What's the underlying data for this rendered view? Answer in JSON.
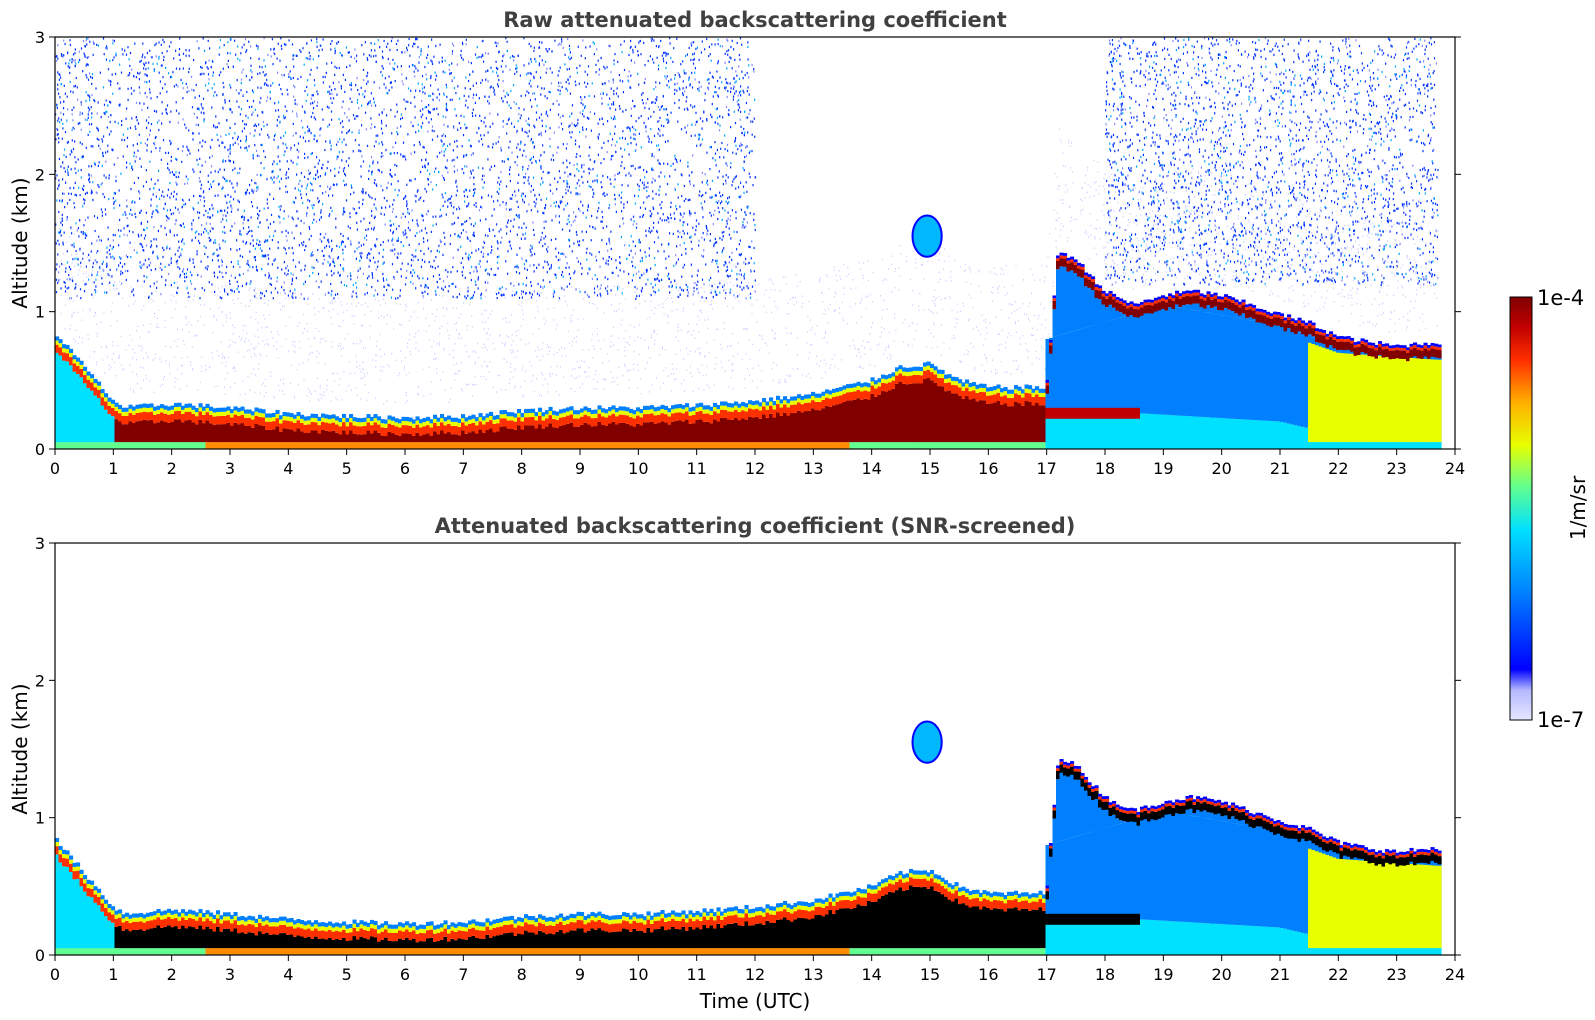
{
  "chart_data": [
    {
      "type": "heatmap",
      "title": "Raw attenuated backscattering coefficient",
      "xlabel": "",
      "ylabel": "Altitude (km)",
      "xlim": [
        0,
        24
      ],
      "ylim": [
        0,
        3
      ],
      "x_ticks": [
        "0",
        "1",
        "2",
        "3",
        "4",
        "5",
        "6",
        "7",
        "8",
        "9",
        "10",
        "11",
        "12",
        "13",
        "14",
        "15",
        "16",
        "17",
        "18",
        "19",
        "20",
        "21",
        "22",
        "23",
        "24"
      ],
      "y_ticks": [
        "0",
        "1",
        "2",
        "3"
      ],
      "data_end_time": 23.7,
      "layer_top_km": {
        "time": [
          0,
          0.5,
          1,
          1.2,
          2,
          3,
          4,
          5,
          6,
          7,
          8,
          9,
          10,
          11,
          12,
          13,
          14,
          14.5,
          15,
          15.5,
          16,
          16.5,
          17,
          17.2,
          17.5,
          18,
          18.5,
          19,
          19.5,
          20,
          20.5,
          21,
          21.5,
          22,
          22.5,
          23,
          23.7
        ],
        "altitude": [
          0.85,
          0.6,
          0.35,
          0.3,
          0.33,
          0.3,
          0.26,
          0.24,
          0.23,
          0.24,
          0.28,
          0.3,
          0.3,
          0.32,
          0.35,
          0.4,
          0.5,
          0.6,
          0.62,
          0.5,
          0.45,
          0.45,
          0.45,
          1.45,
          1.38,
          1.15,
          1.05,
          1.12,
          1.15,
          1.12,
          1.05,
          0.98,
          0.92,
          0.82,
          0.78,
          0.75,
          0.78
        ]
      },
      "aerosol_layer_km": {
        "time": [
          17,
          19,
          21,
          22,
          23.7
        ],
        "top": [
          0.8,
          1.05,
          0.9,
          0.75,
          0.7
        ],
        "bottom": [
          0.3,
          0.25,
          0.2,
          0.1,
          0.1
        ]
      },
      "cloud_patch": {
        "time": [
          14.7,
          15.2
        ],
        "altitude": [
          1.4,
          1.7
        ]
      },
      "noise_regions": [
        {
          "time": [
            0,
            12
          ],
          "altitude": [
            1.1,
            3.0
          ],
          "density": "high"
        },
        {
          "time": [
            18,
            23.7
          ],
          "altitude": [
            1.2,
            3.0
          ],
          "density": "medium"
        }
      ]
    },
    {
      "type": "heatmap",
      "title": "Attenuated backscattering coefficient (SNR-screened)",
      "xlabel": "Time (UTC)",
      "ylabel": "Altitude (km)",
      "xlim": [
        0,
        24
      ],
      "ylim": [
        0,
        3
      ],
      "x_ticks": [
        "0",
        "1",
        "2",
        "3",
        "4",
        "5",
        "6",
        "7",
        "8",
        "9",
        "10",
        "11",
        "12",
        "13",
        "14",
        "15",
        "16",
        "17",
        "18",
        "19",
        "20",
        "21",
        "22",
        "23",
        "24"
      ],
      "y_ticks": [
        "0",
        "1",
        "2",
        "3"
      ],
      "data_end_time": 23.7,
      "screened": true
    }
  ],
  "colorbar": {
    "label": "1/m/sr",
    "max_label": "1e-4",
    "min_label": "1e-7",
    "scale": "log",
    "range": [
      1e-07,
      0.0001
    ],
    "colors": [
      "#e6e8ff",
      "#b4b9ff",
      "#0000ff",
      "#0080ff",
      "#00e0ff",
      "#60ff90",
      "#e8ff00",
      "#ffb000",
      "#ff3000",
      "#c00000",
      "#800000"
    ]
  }
}
